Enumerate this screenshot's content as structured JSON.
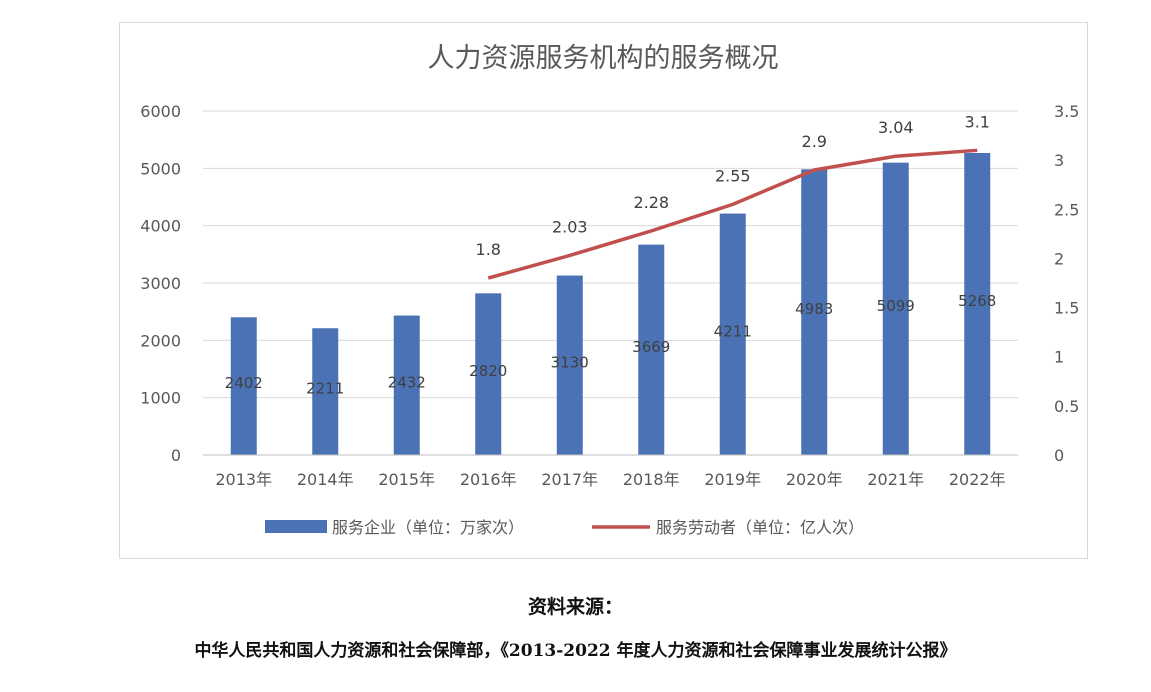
{
  "chart_data": {
    "type": "bar",
    "title": "人力资源服务机构的服务概况",
    "categories": [
      "2013年",
      "2014年",
      "2015年",
      "2016年",
      "2017年",
      "2018年",
      "2019年",
      "2020年",
      "2021年",
      "2022年"
    ],
    "series": [
      {
        "name": "服务企业（单位：万家次）",
        "type": "bar",
        "axis": "left",
        "color": "#4a72b5",
        "values": [
          2402,
          2211,
          2432,
          2820,
          3130,
          3669,
          4211,
          4983,
          5099,
          5268
        ],
        "labels": [
          "2402",
          "2211",
          "2432",
          "2820",
          "3130",
          "3669",
          "4211",
          "4983",
          "5099",
          "5268"
        ]
      },
      {
        "name": "服务劳动者（单位：亿人次）",
        "type": "line",
        "axis": "right",
        "color": "#c0504d",
        "values": [
          null,
          null,
          null,
          1.8,
          2.03,
          2.28,
          2.55,
          2.9,
          3.04,
          3.1
        ],
        "labels": [
          null,
          null,
          null,
          "1.8",
          "2.03",
          "2.28",
          "2.55",
          "2.9",
          "3.04",
          "3.1"
        ]
      }
    ],
    "y_left": {
      "min": 0,
      "max": 6000,
      "ticks": [
        "0",
        "1000",
        "2000",
        "3000",
        "4000",
        "5000",
        "6000"
      ]
    },
    "y_right": {
      "min": 0,
      "max": 3.5,
      "ticks": [
        "0",
        "0.5",
        "1",
        "1.5",
        "2",
        "2.5",
        "3",
        "3.5"
      ]
    },
    "grid": true,
    "legend": "bottom"
  },
  "caption": {
    "label": "资料来源：",
    "source": "中华人民共和国人力资源和社会保障部，《2013-2022 年度人力资源和社会保障事业发展统计公报》"
  }
}
